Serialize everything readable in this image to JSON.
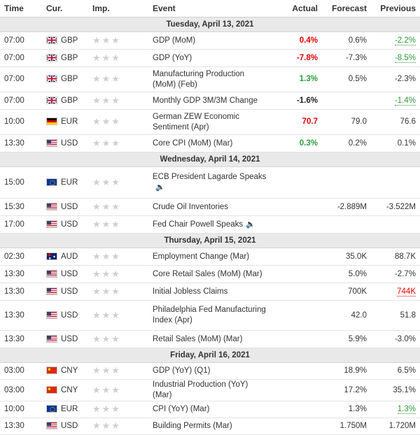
{
  "headers": {
    "time": "Time",
    "cur": "Cur.",
    "imp": "Imp.",
    "event": "Event",
    "actual": "Actual",
    "forecast": "Forecast",
    "previous": "Previous"
  },
  "stars": "★★★",
  "colors": {
    "red": "#e60000",
    "green": "#2e9a3a",
    "day_bg": "#e9e9e9"
  },
  "days": [
    {
      "label": "Tuesday, April 13, 2021",
      "rows": [
        {
          "time": "07:00",
          "flag": "gb",
          "cur": "GBP",
          "event": "GDP (MoM)",
          "actual": "0.4%",
          "actual_color": "red",
          "forecast": "0.6%",
          "previous": "-2.2%",
          "previous_color": "green",
          "h": 25
        },
        {
          "time": "07:00",
          "flag": "gb",
          "cur": "GBP",
          "event": "GDP (YoY)",
          "actual": "-7.8%",
          "actual_color": "red",
          "forecast": "-7.3%",
          "previous": "-8.5%",
          "previous_color": "green",
          "h": 25
        },
        {
          "time": "07:00",
          "flag": "gb",
          "cur": "GBP",
          "event": "Manufacturing Production (MoM) (Feb)",
          "actual": "1.3%",
          "actual_color": "green",
          "forecast": "0.5%",
          "previous": "-2.3%",
          "previous_color": "",
          "h": 36
        },
        {
          "time": "07:00",
          "flag": "gb",
          "cur": "GBP",
          "event": "Monthly GDP 3M/3M Change",
          "actual": "-1.6%",
          "actual_color": "black",
          "forecast": "",
          "previous": "-1.4%",
          "previous_color": "green",
          "h": 25
        },
        {
          "time": "10:00",
          "flag": "de",
          "cur": "EUR",
          "event": "German ZEW Economic Sentiment (Apr)",
          "actual": "70.7",
          "actual_color": "red",
          "forecast": "79.0",
          "previous": "76.6",
          "previous_color": "",
          "h": 36
        },
        {
          "time": "13:30",
          "flag": "us",
          "cur": "USD",
          "event": "Core CPI (MoM) (Mar)",
          "actual": "0.3%",
          "actual_color": "green",
          "forecast": "0.2%",
          "previous": "0.1%",
          "previous_color": "",
          "h": 25
        }
      ]
    },
    {
      "label": "Wednesday, April 14, 2021",
      "rows": [
        {
          "time": "15:00",
          "flag": "eu",
          "cur": "EUR",
          "event": "ECB President Lagarde Speaks",
          "speaker": true,
          "actual": "",
          "actual_color": "",
          "forecast": "",
          "previous": "",
          "previous_color": "",
          "h": 45
        },
        {
          "time": "15:30",
          "flag": "us",
          "cur": "USD",
          "event": "Crude Oil Inventories",
          "actual": "",
          "actual_color": "",
          "forecast": "-2.889M",
          "previous": "-3.522M",
          "previous_color": "",
          "h": 25
        },
        {
          "time": "17:00",
          "flag": "us",
          "cur": "USD",
          "event": "Fed Chair Powell Speaks",
          "speaker": true,
          "actual": "",
          "actual_color": "",
          "forecast": "",
          "previous": "",
          "previous_color": "",
          "h": 25
        }
      ]
    },
    {
      "label": "Thursday, April 15, 2021",
      "rows": [
        {
          "time": "02:30",
          "flag": "au",
          "cur": "AUD",
          "event": "Employment Change (Mar)",
          "actual": "",
          "actual_color": "",
          "forecast": "35.0K",
          "previous": "88.7K",
          "previous_color": "",
          "h": 25
        },
        {
          "time": "13:30",
          "flag": "us",
          "cur": "USD",
          "event": "Core Retail Sales (MoM) (Mar)",
          "actual": "",
          "actual_color": "",
          "forecast": "5.0%",
          "previous": "-2.7%",
          "previous_color": "",
          "h": 25
        },
        {
          "time": "13:30",
          "flag": "us",
          "cur": "USD",
          "event": "Initial Jobless Claims",
          "actual": "",
          "actual_color": "",
          "forecast": "700K",
          "previous": "744K",
          "previous_color": "red",
          "h": 25
        },
        {
          "time": "13:30",
          "flag": "us",
          "cur": "USD",
          "event": "Philadelphia Fed Manufacturing Index (Apr)",
          "actual": "",
          "actual_color": "",
          "forecast": "42.0",
          "previous": "51.8",
          "previous_color": "",
          "h": 43
        },
        {
          "time": "13:30",
          "flag": "us",
          "cur": "USD",
          "event": "Retail Sales (MoM) (Mar)",
          "actual": "",
          "actual_color": "",
          "forecast": "5.9%",
          "previous": "-3.0%",
          "previous_color": "",
          "h": 25
        }
      ]
    },
    {
      "label": "Friday, April 16, 2021",
      "rows": [
        {
          "time": "03:00",
          "flag": "cn",
          "cur": "CNY",
          "event": "GDP (YoY) (Q1)",
          "actual": "",
          "actual_color": "",
          "forecast": "18.9%",
          "previous": "6.5%",
          "previous_color": "",
          "h": 24
        },
        {
          "time": "03:00",
          "flag": "cn",
          "cur": "CNY",
          "event": "Industrial Production (YoY) (Mar)",
          "actual": "",
          "actual_color": "",
          "forecast": "17.2%",
          "previous": "35.1%",
          "previous_color": "",
          "h": 24
        },
        {
          "time": "10:00",
          "flag": "eu",
          "cur": "EUR",
          "event": "CPI (YoY) (Mar)",
          "actual": "",
          "actual_color": "",
          "forecast": "1.3%",
          "previous": "1.3%",
          "previous_color": "green",
          "h": 24
        },
        {
          "time": "13:30",
          "flag": "us",
          "cur": "USD",
          "event": "Building Permits (Mar)",
          "actual": "",
          "actual_color": "",
          "forecast": "1.750M",
          "previous": "1.720M",
          "previous_color": "",
          "h": 24
        }
      ]
    }
  ]
}
